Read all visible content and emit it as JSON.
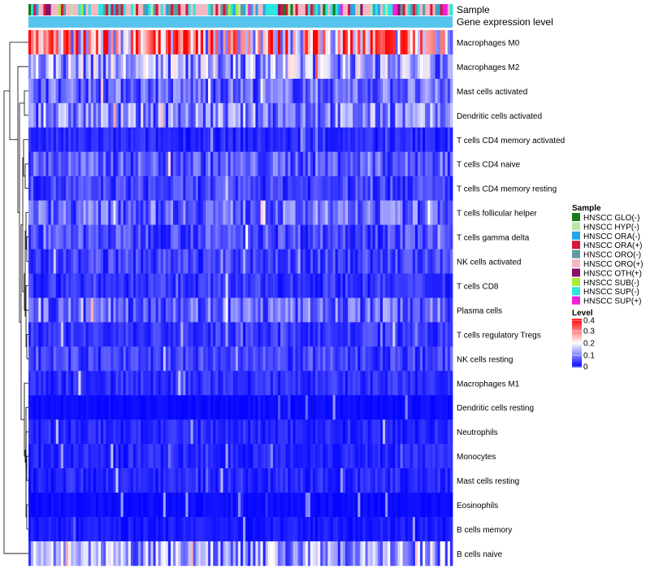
{
  "chart_data": {
    "type": "heatmap",
    "title": "",
    "annotation_tracks": [
      "Sample",
      "Gene expression level"
    ],
    "rows": [
      {
        "label": "Macrophages M0",
        "mean": 0.25
      },
      {
        "label": "Macrophages M2",
        "mean": 0.13
      },
      {
        "label": "Mast cells activated",
        "mean": 0.08
      },
      {
        "label": "Dendritic cells activated",
        "mean": 0.1
      },
      {
        "label": "T cells CD4 memory activated",
        "mean": 0.03
      },
      {
        "label": "T cells CD4 naive",
        "mean": 0.07
      },
      {
        "label": "T cells CD4 memory resting",
        "mean": 0.05
      },
      {
        "label": "T cells follicular helper",
        "mean": 0.08
      },
      {
        "label": "T cells gamma delta",
        "mean": 0.06
      },
      {
        "label": "NK cells activated",
        "mean": 0.05
      },
      {
        "label": "T cells CD8",
        "mean": 0.04
      },
      {
        "label": "Plasma cells",
        "mean": 0.08
      },
      {
        "label": "T cells regulatory  Tregs",
        "mean": 0.04
      },
      {
        "label": "NK cells resting",
        "mean": 0.05
      },
      {
        "label": "Macrophages M1",
        "mean": 0.035
      },
      {
        "label": "Dendritic cells resting",
        "mean": 0.01
      },
      {
        "label": "Neutrophils",
        "mean": 0.03
      },
      {
        "label": "Monocytes",
        "mean": 0.03
      },
      {
        "label": "Mast cells resting",
        "mean": 0.03
      },
      {
        "label": "Eosinophils",
        "mean": 0.01
      },
      {
        "label": "B cells memory",
        "mean": 0.02
      },
      {
        "label": "B cells naive",
        "mean": 0.12
      }
    ],
    "n_samples": 170,
    "sample_legend": {
      "title": "Sample",
      "entries": [
        {
          "label": "HNSCC GLO(-)",
          "color": "#1a7a1a"
        },
        {
          "label": "HNSCC HYP(-)",
          "color": "#b8e6a8"
        },
        {
          "label": "HNSCC ORA(-)",
          "color": "#22a6e8"
        },
        {
          "label": "HNSCC ORA(+)",
          "color": "#d4173c"
        },
        {
          "label": "HNSCC ORO(-)",
          "color": "#5e9a9e"
        },
        {
          "label": "HNSCC ORO(+)",
          "color": "#f4b8c4"
        },
        {
          "label": "HNSCC OTH(+)",
          "color": "#8b0f6e"
        },
        {
          "label": "HNSCC SUB(-)",
          "color": "#a8ec3c"
        },
        {
          "label": "HNSCC SUP(-)",
          "color": "#2ae6e0"
        },
        {
          "label": "HNSCC SUP(+)",
          "color": "#f020d8"
        }
      ]
    },
    "gene_expression_track_color": "#56c4ec",
    "level_legend": {
      "title": "Level",
      "range": [
        0,
        0.4
      ],
      "ticks": [
        "0.4",
        "0.3",
        "0.2",
        "0.1",
        "0"
      ],
      "tick_values": [
        0.4,
        0.3,
        0.2,
        0.1,
        0
      ],
      "colors": [
        "#0000ff",
        "#ffffff",
        "#ff0000"
      ]
    },
    "dendrogram": "hierarchical clustering of rows (left side)"
  }
}
